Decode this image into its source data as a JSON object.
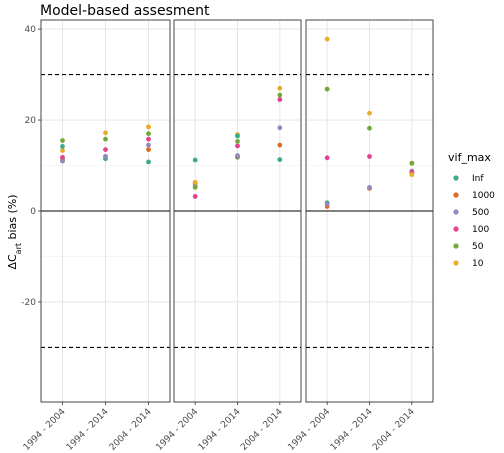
{
  "chart_data": {
    "type": "scatter",
    "title": "Model-based assesment",
    "ylabel": "ΔC_art bias (%)",
    "ylabel_parts": {
      "pre": "ΔC",
      "sub": "art",
      "post": " bias (%)"
    },
    "ylim": [
      -42,
      42
    ],
    "yticks": [
      -20,
      0,
      20,
      40
    ],
    "hlines": {
      "solid": [
        0
      ],
      "dashed": [
        30,
        -30
      ]
    },
    "grid": true,
    "legend_title": "vif_max",
    "legend_position": "right",
    "categories": [
      "1994 - 2004",
      "1994 - 2014",
      "2004 - 2014"
    ],
    "series": [
      {
        "name": "Inf",
        "color": "#3aab8a"
      },
      {
        "name": "1000",
        "color": "#dd6c1e"
      },
      {
        "name": "500",
        "color": "#9488c4"
      },
      {
        "name": "100",
        "color": "#e5418e"
      },
      {
        "name": "50",
        "color": "#6faa38"
      },
      {
        "name": "10",
        "color": "#e8ac27"
      }
    ],
    "panels": [
      {
        "values": {
          "Inf": [
            11.5,
            11.5,
            10.8
          ],
          "1000": [
            11.0,
            12.0,
            13.5
          ],
          "500": [
            11.0,
            12.0,
            14.5
          ],
          "100": [
            11.8,
            13.5,
            15.8
          ],
          "50": [
            15.5,
            15.8,
            17.0
          ],
          "10": [
            13.3,
            17.2,
            18.5
          ]
        },
        "extra": [
          {
            "series": "Inf",
            "category": "1994 - 2004",
            "value": 14.2
          }
        ]
      },
      {
        "values": {
          "Inf": [
            11.2,
            11.8,
            11.3
          ],
          "1000": [
            6.0,
            12.0,
            14.5
          ],
          "500": [
            5.5,
            12.2,
            18.3
          ],
          "100": [
            3.2,
            14.3,
            24.5
          ],
          "50": [
            5.2,
            15.3,
            25.5
          ],
          "10": [
            6.3,
            16.8,
            27.0
          ]
        },
        "extra": [
          {
            "series": "Inf",
            "category": "1994 - 2014",
            "value": 16.5
          }
        ]
      },
      {
        "values": {
          "Inf": [
            1.8,
            5.0,
            8.3
          ],
          "1000": [
            1.0,
            5.0,
            10.5
          ],
          "500": [
            1.5,
            5.2,
            8.8
          ],
          "100": [
            11.7,
            12.0,
            8.5
          ],
          "50": [
            26.8,
            18.2,
            10.5
          ],
          "10": [
            37.8,
            21.5,
            8.0
          ]
        },
        "extra": []
      }
    ]
  }
}
